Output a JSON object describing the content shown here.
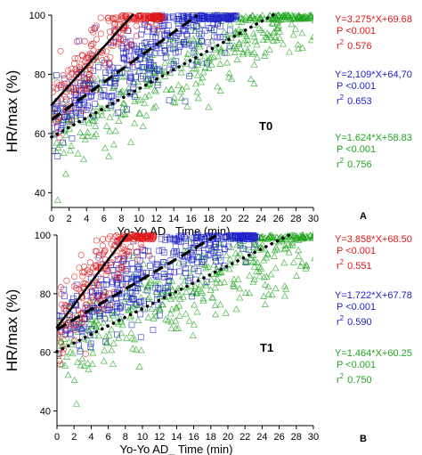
{
  "chart_data": [
    {
      "type": "scatter",
      "panel_label": "A",
      "tag": "T0",
      "xlabel": "Yo-Yo AD_ Time (min)",
      "ylabel": "HR/max (%)",
      "xlim": [
        0,
        30
      ],
      "ylim": [
        35,
        100
      ],
      "xticks": [
        0,
        2,
        4,
        6,
        8,
        10,
        12,
        14,
        16,
        18,
        20,
        22,
        24,
        26,
        28,
        30
      ],
      "yticks": [
        40,
        60,
        80,
        100
      ],
      "grid": false,
      "series": [
        {
          "color": "#e01818",
          "marker": "circle",
          "line_style": "solid",
          "x_range": [
            0,
            9.3
          ],
          "slope": 3.275,
          "intercept": 69.68,
          "equation": "Y=3.275*X+69.68",
          "p_text": "P <0.001",
          "r2_prefix": "r",
          "r2_sup": "2",
          "r2_value": "0.576"
        },
        {
          "color": "#2222cc",
          "marker": "square",
          "line_style": "dashed",
          "x_range": [
            0,
            16.7
          ],
          "slope": 2.109,
          "intercept": 64.7,
          "equation": "Y=2,109*X+64,70",
          "p_text": "P <0.001",
          "r2_prefix": "r",
          "r2_sup": "2",
          "r2_value": "0.653"
        },
        {
          "color": "#22a522",
          "marker": "triangle",
          "line_style": "dotted",
          "x_range": [
            0,
            25.6
          ],
          "slope": 1.624,
          "intercept": 58.83,
          "equation": "Y=1.624*X+58.83",
          "p_text": "P <0.001",
          "r2_prefix": "r",
          "r2_sup": "2",
          "r2_value": "0.756"
        }
      ]
    },
    {
      "type": "scatter",
      "panel_label": "B",
      "tag": "T1",
      "xlabel": "Yo-Yo AD_ Time (min)",
      "ylabel": "HR/max (%)",
      "xlim": [
        0,
        30
      ],
      "ylim": [
        35,
        100
      ],
      "xticks": [
        0,
        2,
        4,
        6,
        8,
        10,
        12,
        14,
        16,
        18,
        20,
        22,
        24,
        26,
        28,
        30
      ],
      "yticks": [
        40,
        60,
        80,
        100
      ],
      "grid": false,
      "series": [
        {
          "color": "#e01818",
          "marker": "circle",
          "line_style": "solid",
          "x_range": [
            0,
            8.2
          ],
          "slope": 3.858,
          "intercept": 68.5,
          "equation": "Y=3.858*X+68.50",
          "p_text": "P <0.001",
          "r2_prefix": "r",
          "r2_sup": "2",
          "r2_value": "0.551"
        },
        {
          "color": "#2222cc",
          "marker": "square",
          "line_style": "dashed",
          "x_range": [
            0,
            18.6
          ],
          "slope": 1.722,
          "intercept": 67.78,
          "equation": "Y=1.722*X+67.78",
          "p_text": "P <0.001",
          "r2_prefix": "r",
          "r2_sup": "2",
          "r2_value": "0.590"
        },
        {
          "color": "#22a522",
          "marker": "triangle",
          "line_style": "dotted",
          "x_range": [
            0,
            27.2
          ],
          "slope": 1.464,
          "intercept": 60.25,
          "equation": "Y=1.464*X+60.25",
          "p_text": "P <0.001",
          "r2_prefix": "r",
          "r2_sup": "2",
          "r2_value": "0.750"
        }
      ]
    }
  ]
}
